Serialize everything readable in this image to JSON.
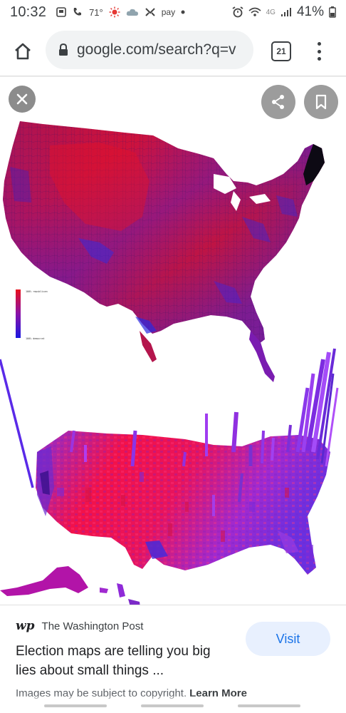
{
  "status": {
    "time": "10:32",
    "temperature": "71°",
    "pay_label": "pay",
    "network": "4G",
    "battery": "41%"
  },
  "browser": {
    "url": "google.com/search?q=v",
    "tab_count": "21"
  },
  "viewer": {
    "legend_top": "100% republican",
    "legend_bottom": "100% democrat"
  },
  "result": {
    "source_logo": "wp",
    "source_name": "The Washington Post",
    "title": "Election maps are telling you big lies about small things ...",
    "visit_label": "Visit",
    "copyright": "Images may be subject to copyright.",
    "learn_more": "Learn More"
  }
}
